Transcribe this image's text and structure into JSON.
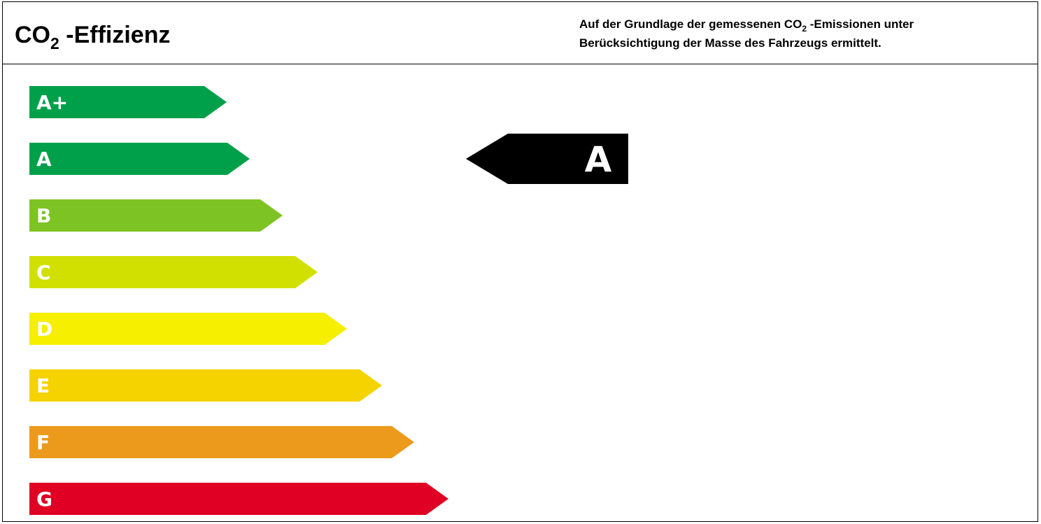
{
  "header": {
    "title_prefix": "CO",
    "title_sub": "2",
    "title_suffix": " -Effizienz",
    "note_line1_prefix": "Auf der Grundlage der gemessenen CO",
    "note_line1_sub": "2",
    "note_line1_suffix": " -Emissionen unter",
    "note_line2": "Berücksichtigung der Masse des Fahrzeugs ermittelt."
  },
  "classes": [
    {
      "label": "A+",
      "color": "#00a04b"
    },
    {
      "label": "A",
      "color": "#00a04b"
    },
    {
      "label": "B",
      "color": "#7ec324"
    },
    {
      "label": "C",
      "color": "#d1e000"
    },
    {
      "label": "D",
      "color": "#f6ef00"
    },
    {
      "label": "E",
      "color": "#f4d300"
    },
    {
      "label": "F",
      "color": "#ec9a1c"
    },
    {
      "label": "G",
      "color": "#df0024"
    }
  ],
  "rating": {
    "label": "A",
    "color": "#000000"
  }
}
